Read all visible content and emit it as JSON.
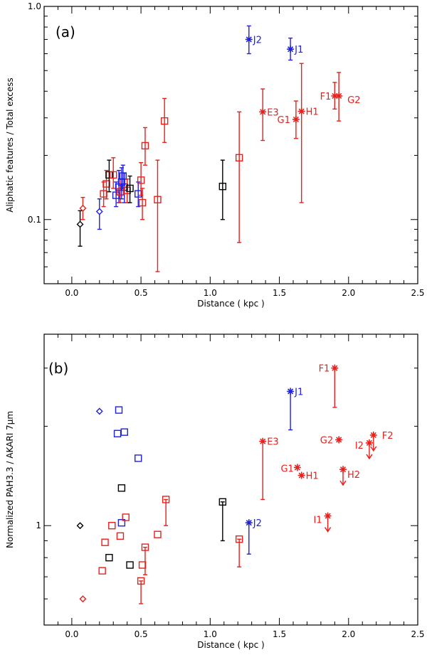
{
  "colors": {
    "red": "#e8201c",
    "blue": "#2020e0",
    "black": "#000000"
  },
  "chart_data": [
    {
      "type": "scatter",
      "panel": "(a)",
      "title": "",
      "xlabel": "Distance ( kpc )",
      "ylabel": "Aliphatic features / Total excess",
      "xlim": [
        -0.2,
        2.5
      ],
      "ylim": [
        0.05,
        1.0
      ],
      "yscale": "log",
      "xticks": [
        "0.0",
        "0.5",
        "1.0",
        "1.5",
        "2.0",
        "2.5"
      ],
      "yticks": [
        "0.1",
        "1.0"
      ],
      "points": [
        {
          "x": 0.06,
          "y": 0.095,
          "lo": 0.075,
          "hi": 0.11,
          "marker": "diamond",
          "color": "black"
        },
        {
          "x": 0.08,
          "y": 0.113,
          "lo": 0.1,
          "hi": 0.127,
          "marker": "diamond",
          "color": "red"
        },
        {
          "x": 0.2,
          "y": 0.109,
          "lo": 0.09,
          "hi": 0.125,
          "marker": "diamond",
          "color": "blue"
        },
        {
          "x": 0.23,
          "y": 0.132,
          "lo": 0.115,
          "hi": 0.15,
          "marker": "square",
          "color": "red"
        },
        {
          "x": 0.25,
          "y": 0.147,
          "lo": 0.125,
          "hi": 0.17,
          "marker": "square",
          "color": "red"
        },
        {
          "x": 0.27,
          "y": 0.162,
          "lo": 0.135,
          "hi": 0.19,
          "marker": "square",
          "color": "black"
        },
        {
          "x": 0.3,
          "y": 0.162,
          "lo": 0.14,
          "hi": 0.195,
          "marker": "square",
          "color": "red"
        },
        {
          "x": 0.32,
          "y": 0.13,
          "lo": 0.115,
          "hi": 0.15,
          "marker": "square",
          "color": "blue"
        },
        {
          "x": 0.34,
          "y": 0.142,
          "lo": 0.12,
          "hi": 0.17,
          "marker": "square",
          "color": "blue"
        },
        {
          "x": 0.35,
          "y": 0.135,
          "lo": 0.12,
          "hi": 0.155,
          "marker": "square",
          "color": "red"
        },
        {
          "x": 0.36,
          "y": 0.15,
          "lo": 0.125,
          "hi": 0.175,
          "marker": "square",
          "color": "blue"
        },
        {
          "x": 0.37,
          "y": 0.16,
          "lo": 0.14,
          "hi": 0.18,
          "marker": "square",
          "color": "blue"
        },
        {
          "x": 0.38,
          "y": 0.142,
          "lo": 0.12,
          "hi": 0.165,
          "marker": "square",
          "color": "blue"
        },
        {
          "x": 0.4,
          "y": 0.137,
          "lo": 0.12,
          "hi": 0.155,
          "marker": "square",
          "color": "red"
        },
        {
          "x": 0.42,
          "y": 0.14,
          "lo": 0.12,
          "hi": 0.16,
          "marker": "square",
          "color": "black"
        },
        {
          "x": 0.48,
          "y": 0.132,
          "lo": 0.115,
          "hi": 0.15,
          "marker": "square",
          "color": "blue"
        },
        {
          "x": 0.5,
          "y": 0.153,
          "lo": 0.13,
          "hi": 0.185,
          "marker": "square",
          "color": "red"
        },
        {
          "x": 0.51,
          "y": 0.12,
          "lo": 0.1,
          "hi": 0.14,
          "marker": "square",
          "color": "red"
        },
        {
          "x": 0.53,
          "y": 0.222,
          "lo": 0.18,
          "hi": 0.27,
          "marker": "square",
          "color": "red"
        },
        {
          "x": 0.62,
          "y": 0.124,
          "lo": 0.057,
          "hi": 0.19,
          "marker": "square",
          "color": "red"
        },
        {
          "x": 0.67,
          "y": 0.29,
          "lo": 0.23,
          "hi": 0.37,
          "marker": "square",
          "color": "red"
        },
        {
          "x": 1.09,
          "y": 0.143,
          "lo": 0.1,
          "hi": 0.19,
          "marker": "square",
          "color": "black"
        },
        {
          "x": 1.21,
          "y": 0.195,
          "lo": 0.078,
          "hi": 0.32,
          "marker": "square",
          "color": "red"
        },
        {
          "x": 1.28,
          "y": 0.7,
          "lo": 0.6,
          "hi": 0.81,
          "marker": "star",
          "color": "blue",
          "label": "J2"
        },
        {
          "x": 1.58,
          "y": 0.63,
          "lo": 0.56,
          "hi": 0.71,
          "marker": "star",
          "color": "blue",
          "label": "J1"
        },
        {
          "x": 1.38,
          "y": 0.32,
          "lo": 0.235,
          "hi": 0.41,
          "marker": "star",
          "color": "red",
          "label": "E3"
        },
        {
          "x": 1.62,
          "y": 0.295,
          "lo": 0.24,
          "hi": 0.36,
          "marker": "star",
          "color": "red",
          "label": "G1"
        },
        {
          "x": 1.66,
          "y": 0.322,
          "lo": 0.12,
          "hi": 0.54,
          "marker": "star",
          "color": "red",
          "label": "H1"
        },
        {
          "x": 1.9,
          "y": 0.38,
          "lo": 0.33,
          "hi": 0.44,
          "marker": "star",
          "color": "red",
          "label": "F1"
        },
        {
          "x": 1.93,
          "y": 0.38,
          "lo": 0.29,
          "hi": 0.49,
          "marker": "star",
          "color": "red",
          "label": "G2"
        }
      ]
    },
    {
      "type": "scatter",
      "panel": "(b)",
      "title": "",
      "xlabel": "Distance ( kpc )",
      "ylabel": "Normalized PAH3.3 / AKARI 7μm",
      "xlim": [
        -0.2,
        2.5
      ],
      "ylim": [
        0.5,
        3.8
      ],
      "yscale": "log",
      "xticks": [
        "0.0",
        "0.5",
        "1.0",
        "1.5",
        "2.0",
        "2.5"
      ],
      "yticks": [
        "1"
      ],
      "points": [
        {
          "x": 0.06,
          "y": 1.0,
          "marker": "diamond",
          "color": "black"
        },
        {
          "x": 0.08,
          "y": 0.6,
          "marker": "diamond",
          "color": "red"
        },
        {
          "x": 0.2,
          "y": 2.22,
          "marker": "diamond",
          "color": "blue"
        },
        {
          "x": 0.22,
          "y": 0.73,
          "marker": "square",
          "color": "red"
        },
        {
          "x": 0.24,
          "y": 0.89,
          "marker": "square",
          "color": "red"
        },
        {
          "x": 0.27,
          "y": 0.8,
          "marker": "square",
          "color": "black"
        },
        {
          "x": 0.29,
          "y": 1.0,
          "marker": "square",
          "color": "red"
        },
        {
          "x": 0.33,
          "y": 1.9,
          "marker": "square",
          "color": "blue"
        },
        {
          "x": 0.34,
          "y": 2.24,
          "marker": "square",
          "color": "blue"
        },
        {
          "x": 0.35,
          "y": 0.93,
          "marker": "square",
          "color": "red"
        },
        {
          "x": 0.36,
          "y": 1.02,
          "marker": "square",
          "color": "blue"
        },
        {
          "x": 0.36,
          "y": 1.3,
          "marker": "square",
          "color": "black"
        },
        {
          "x": 0.38,
          "y": 1.92,
          "marker": "square",
          "color": "blue"
        },
        {
          "x": 0.39,
          "y": 1.06,
          "marker": "square",
          "color": "red"
        },
        {
          "x": 0.42,
          "y": 0.76,
          "marker": "square",
          "color": "black"
        },
        {
          "x": 0.48,
          "y": 1.6,
          "marker": "square",
          "color": "blue"
        },
        {
          "x": 0.5,
          "y": 0.68,
          "lo": 0.58,
          "hi": 0.68,
          "marker": "square",
          "color": "red"
        },
        {
          "x": 0.51,
          "y": 0.76,
          "marker": "square",
          "color": "red"
        },
        {
          "x": 0.53,
          "y": 0.86,
          "lo": 0.71,
          "hi": 0.86,
          "marker": "square",
          "color": "red"
        },
        {
          "x": 0.62,
          "y": 0.94,
          "marker": "square",
          "color": "red"
        },
        {
          "x": 0.68,
          "y": 1.2,
          "lo": 1.0,
          "hi": 1.2,
          "marker": "square",
          "color": "red"
        },
        {
          "x": 1.09,
          "y": 1.18,
          "lo": 0.9,
          "hi": 1.18,
          "marker": "square",
          "color": "black"
        },
        {
          "x": 1.21,
          "y": 0.91,
          "lo": 0.75,
          "hi": 0.91,
          "marker": "square",
          "color": "red"
        },
        {
          "x": 1.28,
          "y": 1.02,
          "lo": 0.82,
          "hi": 1.02,
          "marker": "star",
          "color": "blue",
          "label": "J2"
        },
        {
          "x": 1.38,
          "y": 1.8,
          "lo": 1.2,
          "hi": 1.8,
          "marker": "star",
          "color": "red",
          "label": "E3"
        },
        {
          "x": 1.58,
          "y": 2.55,
          "lo": 1.95,
          "hi": 2.55,
          "marker": "star",
          "color": "blue",
          "label": "J1"
        },
        {
          "x": 1.63,
          "y": 1.5,
          "marker": "star",
          "color": "red",
          "label": "G1"
        },
        {
          "x": 1.66,
          "y": 1.42,
          "marker": "star",
          "color": "red",
          "label": "H1"
        },
        {
          "x": 1.85,
          "y": 1.07,
          "marker": "star",
          "color": "red",
          "label": "I1",
          "upper": true
        },
        {
          "x": 1.9,
          "y": 3.0,
          "lo": 2.28,
          "hi": 3.0,
          "marker": "star",
          "color": "red",
          "label": "F1"
        },
        {
          "x": 1.93,
          "y": 1.82,
          "marker": "star",
          "color": "red",
          "label": "G2"
        },
        {
          "x": 1.96,
          "y": 1.48,
          "marker": "star",
          "color": "red",
          "label": "H2",
          "upper": true
        },
        {
          "x": 2.15,
          "y": 1.78,
          "marker": "star",
          "color": "red",
          "label": "I2",
          "upper": true
        },
        {
          "x": 2.18,
          "y": 1.88,
          "marker": "star",
          "color": "red",
          "label": "F2",
          "upper": true
        }
      ]
    }
  ]
}
